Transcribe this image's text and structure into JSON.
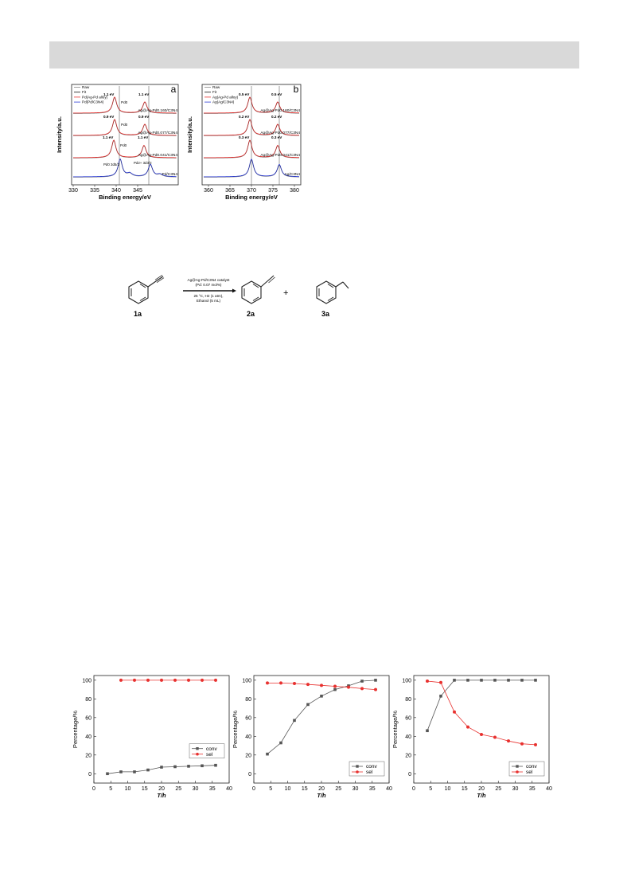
{
  "xps_a": {
    "panel_letter": "a",
    "legend": [
      "Raw",
      "Fit",
      "Pd(Ag-Pd alloy)",
      "Pd(Pd/C3N4)"
    ],
    "ylabel": "Intensity/a.u.",
    "xlabel": "Binding energy/eV",
    "ticks": [
      "330",
      "335",
      "340",
      "345"
    ],
    "samples": [
      "Ag@Ag-Pd0.160/C3N4",
      "Ag@Ag-Pd0.077/C3N4",
      "Ag@Ag-Pd0.041/C3N4",
      "Pd/C3N4"
    ],
    "shifts": [
      [
        "1.1 eV",
        "1.1 eV"
      ],
      [
        "0.9 eV",
        "0.9 eV"
      ],
      [
        "1.1 eV",
        "1.1 eV"
      ]
    ],
    "pd0": "Pd0",
    "pd_bottom": [
      "Pd0 3d5/2",
      "Pd2+ 3d3/2"
    ]
  },
  "xps_b": {
    "panel_letter": "b",
    "legend": [
      "Raw",
      "Fit",
      "Ag(Ag-Pd alloy)",
      "Ag(Ag/C3N4)"
    ],
    "ylabel": "Intensity/a.u.",
    "xlabel": "Binding energy/eV",
    "ticks": [
      "360",
      "365",
      "370",
      "375",
      "380"
    ],
    "samples": [
      "Ag@Ag-Pd0.160/C3N4",
      "Ag@Ag-Pd0.077/C3N4",
      "Ag@Ag-Pd0.041/C3N4",
      "Ag/C3N4"
    ],
    "shifts": [
      [
        "0.5 eV",
        "0.5 eV"
      ],
      [
        "0.2 eV",
        "0.2 eV"
      ],
      [
        "0.3 eV",
        "0.3 eV"
      ]
    ]
  },
  "scheme": {
    "catalyst": "Ag@Ag-Pd/C3N4 catalyst",
    "loading": "(Pd: 0.07 mol%)",
    "conditions": "25 °C, H2 (1 atm),",
    "solvent": "Ethanol (5 mL)",
    "label_1a": "1a",
    "label_2a": "2a",
    "label_3a": "3a",
    "plus": "+"
  },
  "chart_data": [
    {
      "type": "line",
      "xlabel": "T/h",
      "ylabel": "Percentage/%",
      "xlim": [
        0,
        40
      ],
      "ylim": [
        -10,
        105
      ],
      "xticks": [
        0,
        5,
        10,
        15,
        20,
        25,
        30,
        35,
        40
      ],
      "yticks": [
        0,
        20,
        40,
        60,
        80,
        100
      ],
      "legend_position": "right-middle",
      "series": [
        {
          "name": "conv",
          "color": "#555555",
          "x": [
            4,
            8,
            12,
            16,
            20,
            24,
            28,
            32,
            36
          ],
          "values": [
            0,
            2,
            2,
            4,
            7,
            7.5,
            8,
            8.5,
            9
          ]
        },
        {
          "name": "sel",
          "color": "#e8312f",
          "x": [
            8,
            12,
            16,
            20,
            24,
            28,
            32,
            36
          ],
          "values": [
            100,
            100,
            100,
            100,
            100,
            100,
            100,
            100
          ]
        }
      ]
    },
    {
      "type": "line",
      "xlabel": "T/h",
      "ylabel": "Percentage/%",
      "xlim": [
        0,
        40
      ],
      "ylim": [
        -10,
        105
      ],
      "xticks": [
        0,
        5,
        10,
        15,
        20,
        25,
        30,
        35,
        40
      ],
      "yticks": [
        0,
        20,
        40,
        60,
        80,
        100
      ],
      "legend_position": "bottom-right",
      "series": [
        {
          "name": "conv",
          "color": "#555555",
          "x": [
            4,
            8,
            12,
            16,
            20,
            24,
            28,
            32,
            36
          ],
          "values": [
            21,
            33,
            57,
            74,
            83,
            90,
            94,
            99,
            100
          ]
        },
        {
          "name": "sel",
          "color": "#e8312f",
          "x": [
            4,
            8,
            12,
            16,
            20,
            24,
            28,
            32,
            36
          ],
          "values": [
            97,
            97,
            96.5,
            95.5,
            94.5,
            93.5,
            92.5,
            91,
            90
          ]
        }
      ]
    },
    {
      "type": "line",
      "xlabel": "T/h",
      "ylabel": "Percentage/%",
      "xlim": [
        0,
        40
      ],
      "ylim": [
        -10,
        105
      ],
      "xticks": [
        0,
        5,
        10,
        15,
        20,
        25,
        30,
        35,
        40
      ],
      "yticks": [
        0,
        20,
        40,
        60,
        80,
        100
      ],
      "legend_position": "bottom-right",
      "series": [
        {
          "name": "conv",
          "color": "#555555",
          "x": [
            4,
            8,
            12,
            16,
            20,
            24,
            28,
            32,
            36
          ],
          "values": [
            46,
            83,
            100,
            100,
            100,
            100,
            100,
            100,
            100
          ]
        },
        {
          "name": "sel",
          "color": "#e8312f",
          "x": [
            4,
            8,
            12,
            16,
            20,
            24,
            28,
            32,
            36
          ],
          "values": [
            99,
            97.5,
            66,
            50,
            42,
            39,
            35,
            32,
            31
          ]
        }
      ]
    }
  ]
}
